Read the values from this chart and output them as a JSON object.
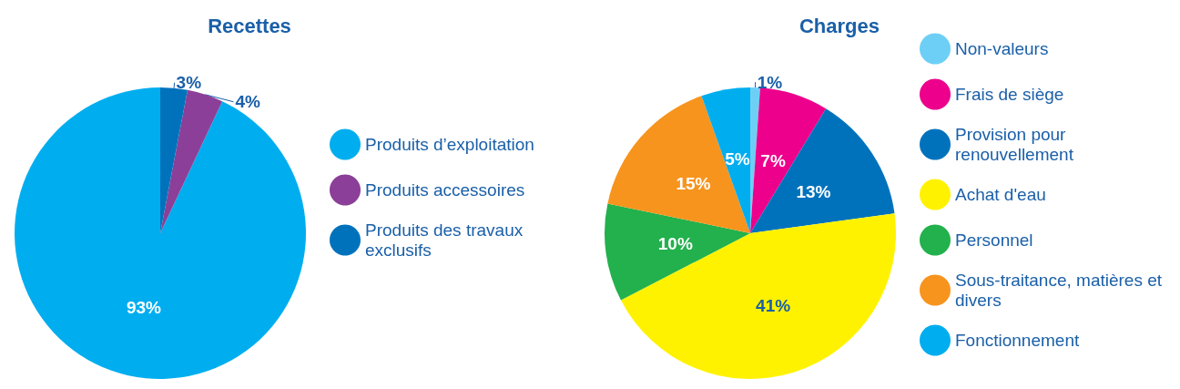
{
  "chart_data": [
    {
      "type": "pie",
      "title": "Recettes",
      "legend": "right",
      "categories": [
        "Produits d’exploitation",
        "Produits accessoires",
        "Produits des travaux exclusifs"
      ],
      "values": [
        93,
        4,
        3
      ],
      "value_labels": [
        "93%",
        "4%",
        "3%"
      ],
      "colors": [
        "#00aeef",
        "#8b3f98",
        "#0072bc"
      ]
    },
    {
      "type": "pie",
      "title": "Charges",
      "legend": "right",
      "categories": [
        "Non-valeurs",
        "Frais de siège",
        "Provision pour renouvellement",
        "Achat d'eau",
        "Personnel",
        "Sous-traitance, matières et divers",
        "Fonctionnement"
      ],
      "values": [
        1,
        7,
        13,
        41,
        10,
        15,
        5
      ],
      "value_labels": [
        "1%",
        "7%",
        "13%",
        "41%",
        "10%",
        "15%",
        "5%"
      ],
      "colors": [
        "#6dcff6",
        "#ec008c",
        "#0072bc",
        "#fff200",
        "#22b14c",
        "#f7941d",
        "#00aeef"
      ]
    }
  ]
}
